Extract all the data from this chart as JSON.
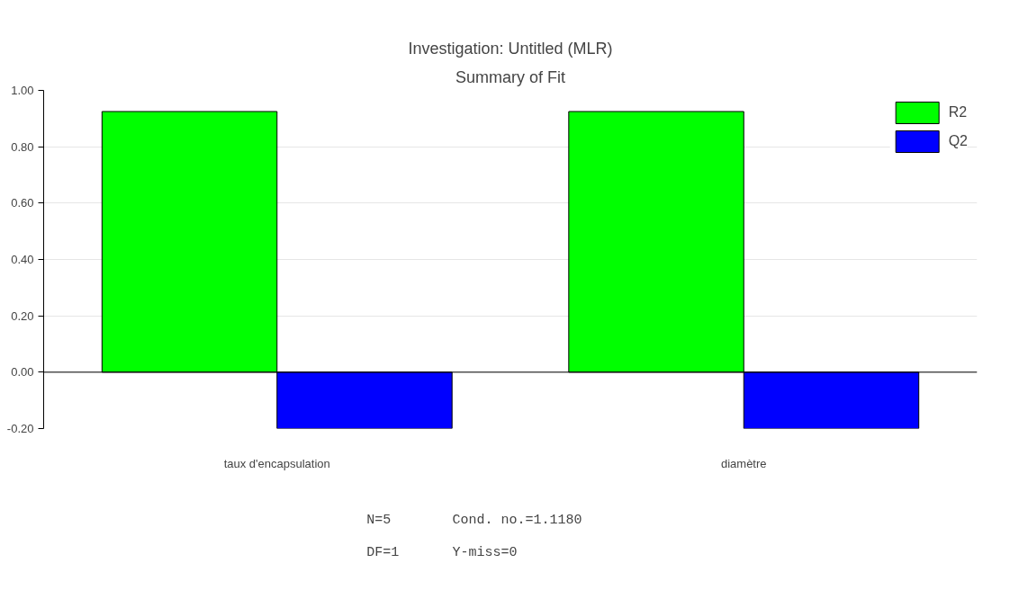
{
  "chart_data": {
    "type": "bar",
    "title": "Investigation: Untitled (MLR)",
    "subtitle": "Summary of Fit",
    "categories": [
      "taux d'encapsulation",
      "diamètre"
    ],
    "series": [
      {
        "name": "R2",
        "color": "#00ff00",
        "values": [
          0.925,
          0.925
        ]
      },
      {
        "name": "Q2",
        "color": "#0000ff",
        "values": [
          -0.2,
          -0.2
        ]
      }
    ],
    "ylim": [
      -0.2,
      1.0
    ],
    "yticks": [
      {
        "value": -0.2,
        "label": "-0.20"
      },
      {
        "value": 0,
        "label": "0.00"
      },
      {
        "value": 0.2,
        "label": "0.20"
      },
      {
        "value": 0.4,
        "label": "0.40"
      },
      {
        "value": 0.6,
        "label": "0.60"
      },
      {
        "value": 0.8,
        "label": "0.80"
      },
      {
        "value": 1.0,
        "label": "1.00"
      }
    ],
    "grid": "y",
    "legend": "top right",
    "annotations": [
      "N=5",
      "Cond. no.=1.1180",
      "DF=1",
      "Y-miss=0"
    ]
  }
}
